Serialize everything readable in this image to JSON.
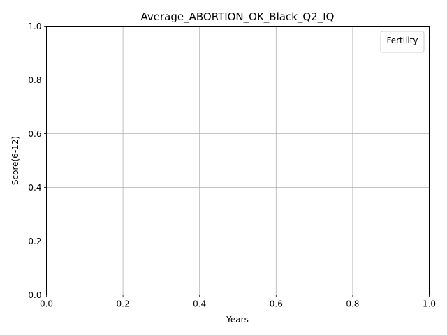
{
  "chart_data": {
    "type": "line",
    "title": "Average_ABORTION_OK_Black_Q2_IQ",
    "xlabel": "Years",
    "ylabel": "Score(6-12)",
    "xlim": [
      0.0,
      1.0
    ],
    "ylim": [
      0.0,
      1.0
    ],
    "xticks": [
      "0.0",
      "0.2",
      "0.4",
      "0.6",
      "0.8",
      "1.0"
    ],
    "yticks": [
      "0.0",
      "0.2",
      "0.4",
      "0.6",
      "0.8",
      "1.0"
    ],
    "grid": true,
    "legend": {
      "title": "Fertility",
      "placement": "top-right",
      "entries": []
    },
    "series": []
  },
  "colors": {
    "grid": "#b0b0b0",
    "axis": "#000000",
    "legend_border": "#cccccc",
    "background": "#ffffff"
  }
}
